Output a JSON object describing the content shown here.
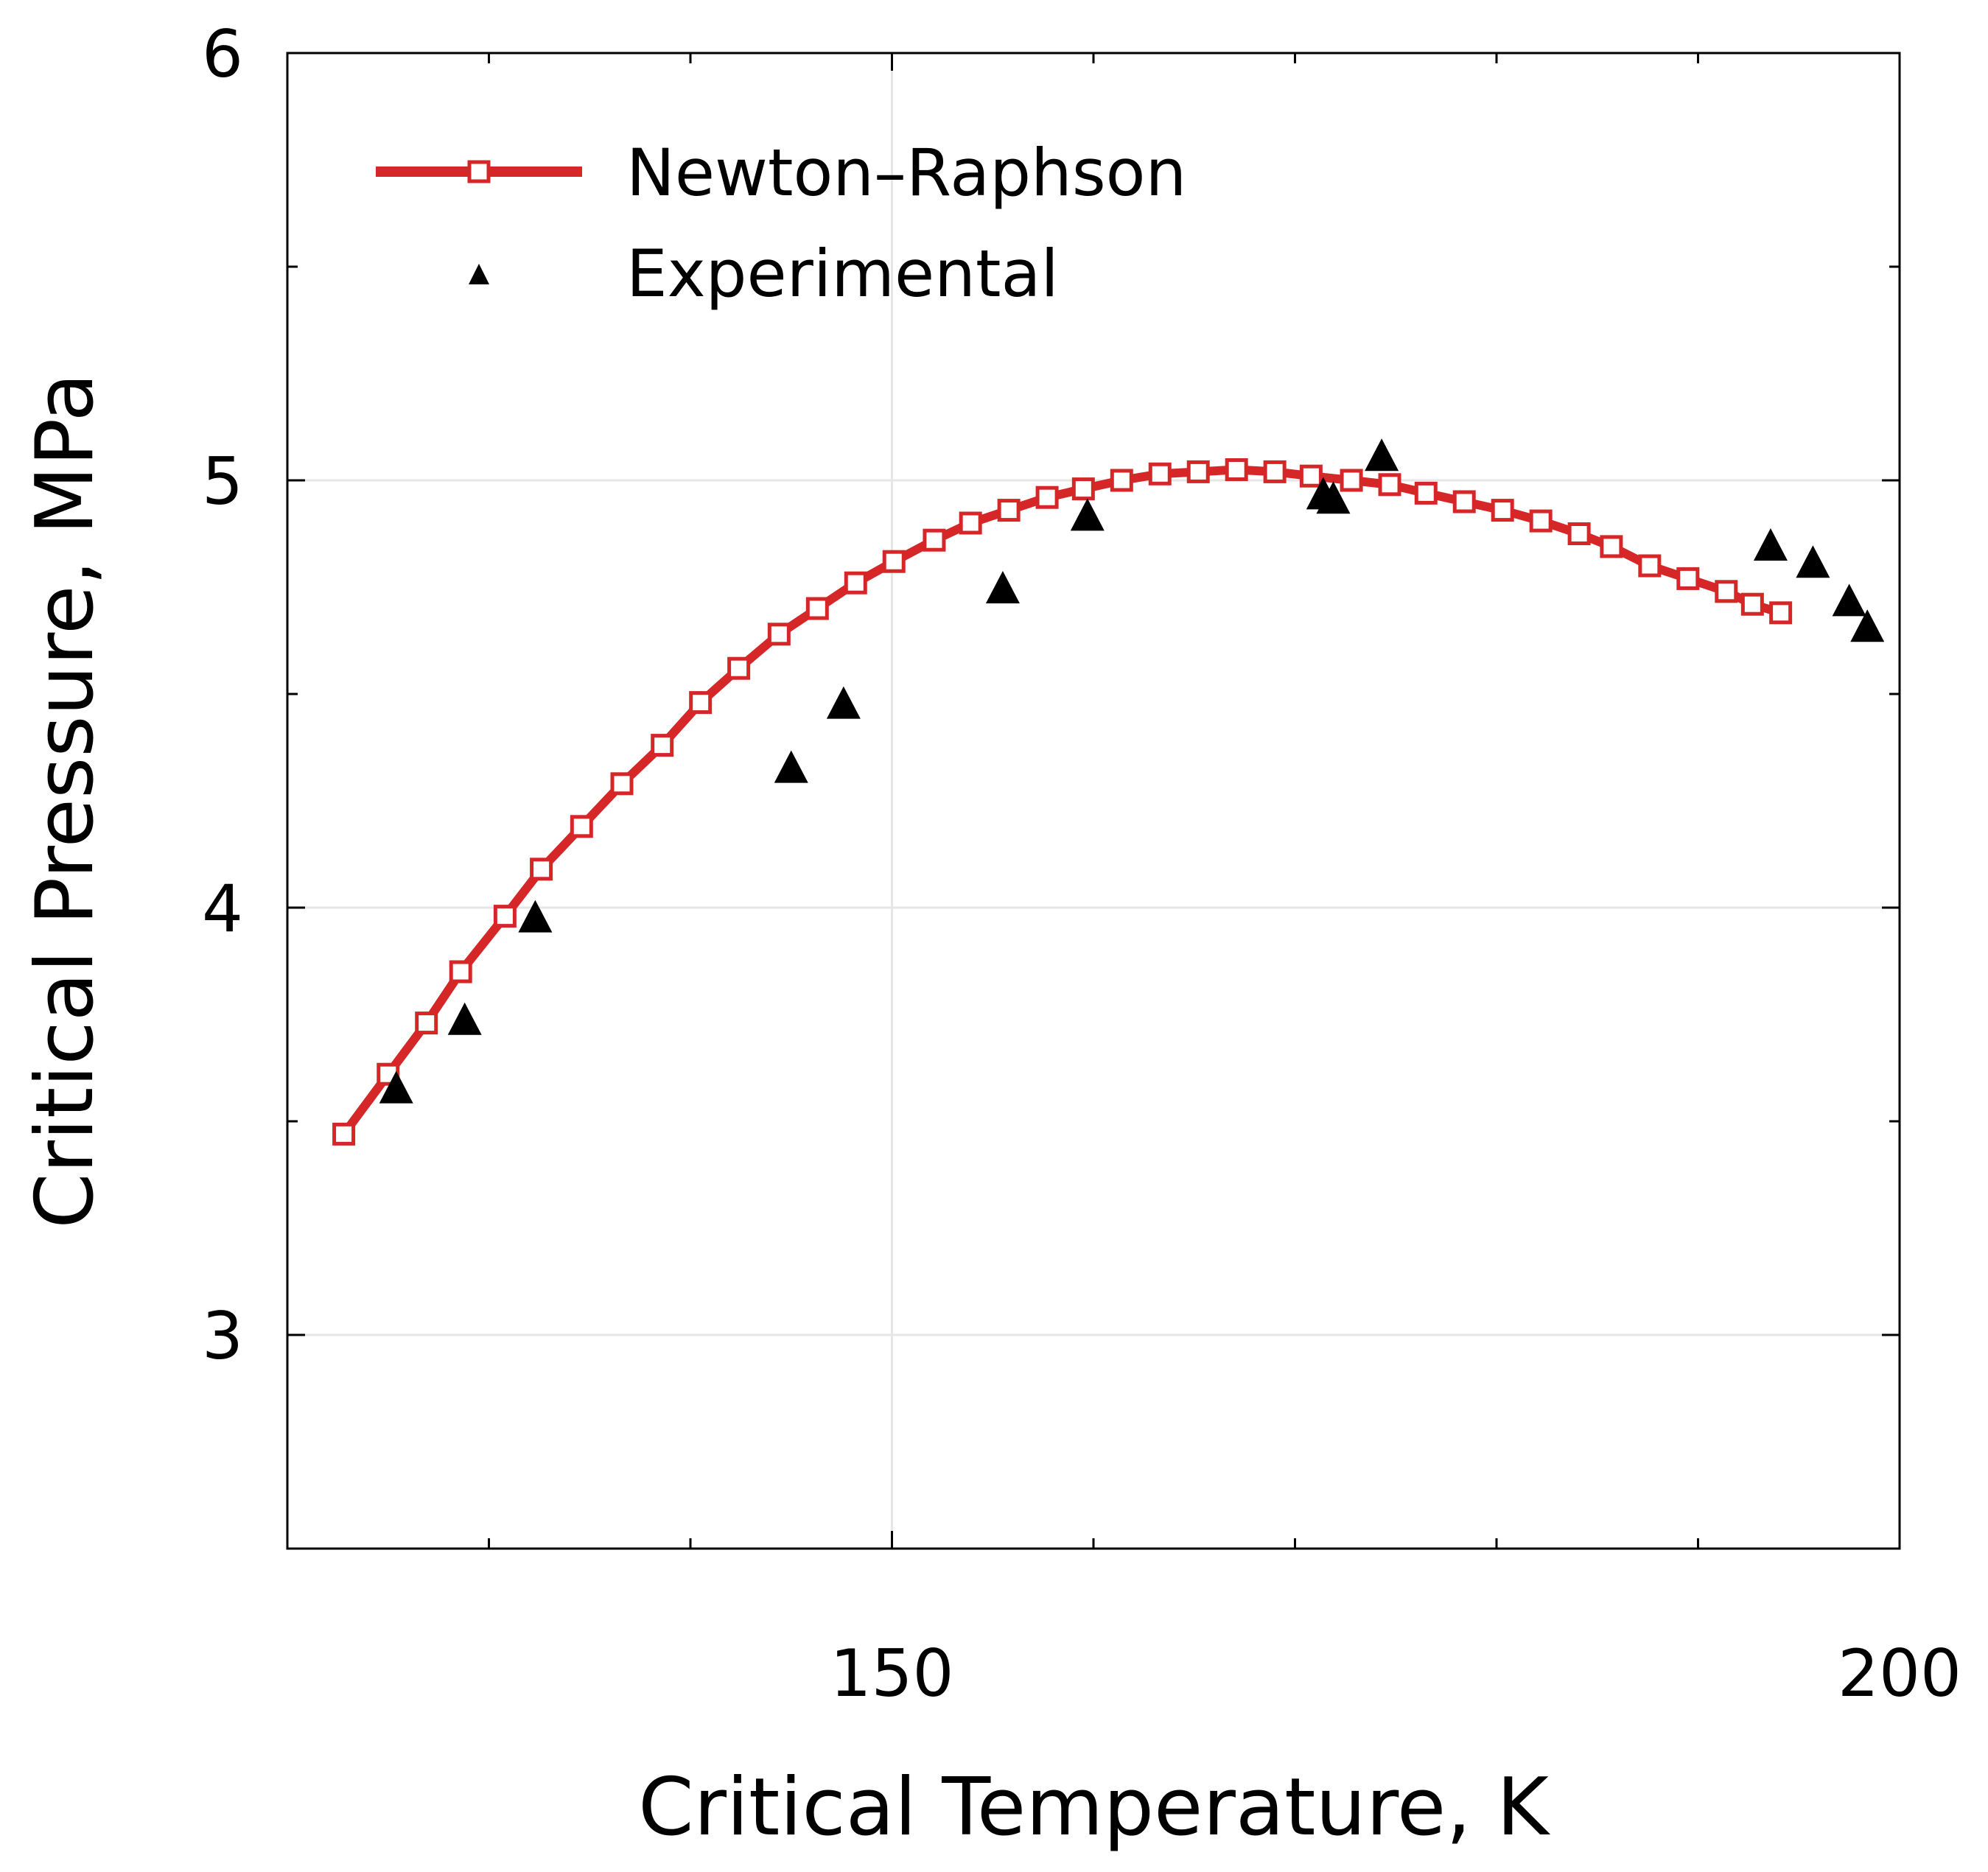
{
  "chart_data": {
    "type": "scatter",
    "xlabel": "Critical Temperature, K",
    "ylabel": "Critical Pressure, MPa",
    "xlim": [
      120,
      200
    ],
    "ylim": [
      2.5,
      6
    ],
    "x_ticks": [
      150,
      200
    ],
    "y_ticks": [
      3,
      4,
      5,
      6
    ],
    "grid": true,
    "legend": {
      "position": "top-left"
    },
    "series": [
      {
        "name": "Newton–Raphson",
        "kind": "line-with-square-markers",
        "color": "#d62728",
        "marker_fill": "#ffffff",
        "x": [
          122.8,
          125.0,
          126.9,
          128.6,
          130.8,
          132.6,
          134.6,
          136.6,
          138.6,
          140.5,
          142.4,
          144.4,
          146.3,
          148.2,
          150.1,
          152.1,
          153.9,
          155.8,
          157.7,
          159.5,
          161.4,
          163.3,
          165.2,
          167.1,
          169.0,
          170.8,
          172.8,
          174.7,
          176.5,
          178.4,
          180.3,
          182.2,
          184.1,
          185.7,
          187.6,
          189.5,
          191.4,
          192.7,
          194.1
        ],
        "y": [
          3.47,
          3.61,
          3.73,
          3.85,
          3.98,
          4.09,
          4.19,
          4.29,
          4.38,
          4.48,
          4.56,
          4.64,
          4.7,
          4.76,
          4.81,
          4.86,
          4.9,
          4.93,
          4.96,
          4.98,
          5.0,
          5.015,
          5.02,
          5.025,
          5.02,
          5.01,
          5.0,
          4.99,
          4.97,
          4.95,
          4.93,
          4.905,
          4.875,
          4.845,
          4.8,
          4.77,
          4.74,
          4.71,
          4.69
        ]
      },
      {
        "name": "Experimental",
        "kind": "scatter-triangles",
        "color": "#000000",
        "x": [
          125.4,
          128.8,
          132.3,
          145.0,
          147.6,
          155.5,
          159.7,
          171.4,
          171.9,
          174.3,
          193.6,
          195.7,
          197.5,
          198.4
        ],
        "y": [
          3.58,
          3.74,
          3.98,
          4.33,
          4.48,
          4.75,
          4.92,
          4.97,
          4.96,
          5.06,
          4.85,
          4.81,
          4.72,
          4.66
        ]
      }
    ]
  }
}
